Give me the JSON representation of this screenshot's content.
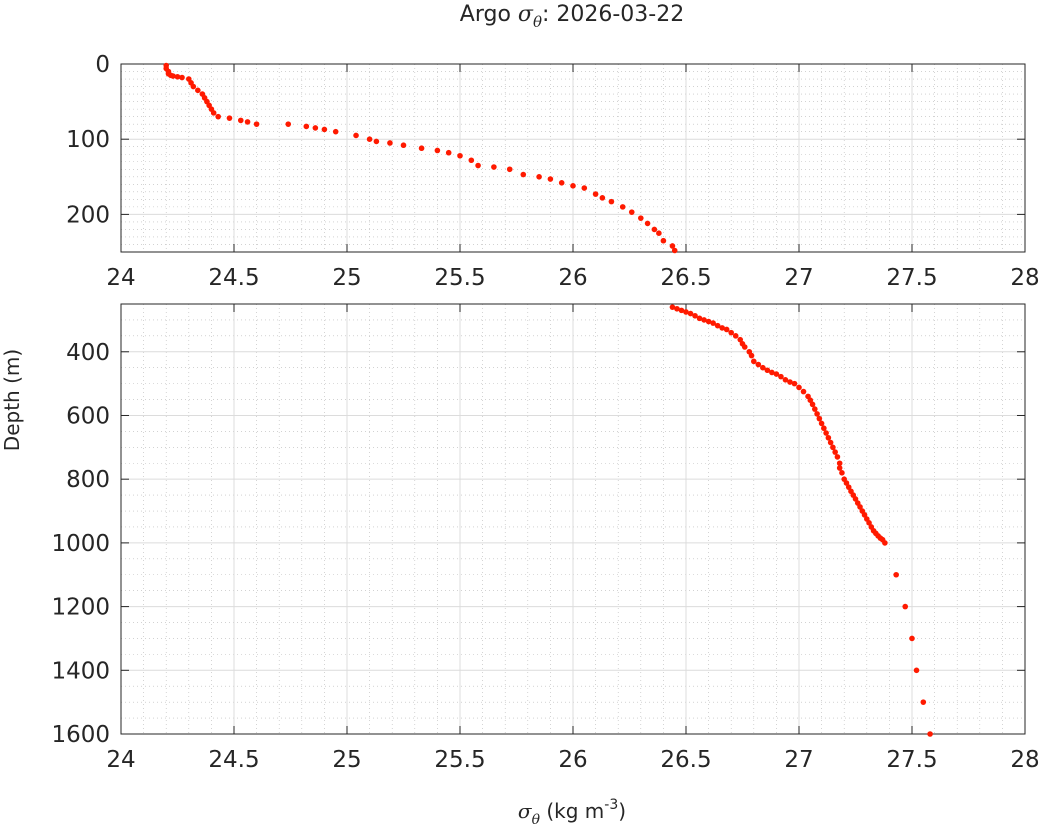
{
  "chart_data": [
    {
      "type": "scatter",
      "panel": "upper",
      "title_prefix": "Argo",
      "title_symbol": "σ",
      "title_symbol_subscript": "θ",
      "title_suffix": ": 2026-03-22",
      "xlim": [
        24,
        28
      ],
      "ylim": [
        0,
        250
      ],
      "y_reversed": true,
      "x_ticks": [
        "24",
        "24.5",
        "25",
        "25.5",
        "26",
        "26.5",
        "27",
        "27.5",
        "28"
      ],
      "y_ticks": [
        "0",
        "100",
        "200"
      ],
      "grid": true,
      "minor_grid": true,
      "marker_color": "#ff1a00",
      "series": [
        {
          "x": [
            24.2,
            24.2,
            24.21,
            24.21,
            24.22,
            24.23,
            24.25,
            24.27,
            24.3,
            24.31,
            24.32,
            24.34,
            24.36,
            24.37,
            24.38,
            24.39,
            24.4,
            24.41,
            24.43,
            24.48,
            24.53,
            24.56,
            24.6,
            24.74,
            24.82,
            24.86,
            24.9,
            24.95,
            25.04,
            25.1,
            25.13,
            25.19,
            25.25,
            25.33,
            25.4,
            25.45,
            25.5,
            25.55,
            25.58,
            25.65,
            25.72,
            25.78,
            25.85,
            25.9,
            25.95,
            26.0,
            26.05,
            26.1,
            26.13,
            26.17,
            26.22,
            26.26,
            26.3,
            26.33,
            26.36,
            26.38,
            26.4,
            26.44,
            26.45
          ],
          "y": [
            2,
            6,
            10,
            13,
            15,
            16,
            17,
            18,
            20,
            25,
            30,
            35,
            40,
            45,
            50,
            55,
            60,
            65,
            70,
            72,
            75,
            77,
            80,
            80,
            83,
            85,
            87,
            90,
            95,
            100,
            103,
            105,
            108,
            112,
            115,
            118,
            122,
            128,
            135,
            137,
            140,
            147,
            150,
            153,
            158,
            162,
            165,
            173,
            178,
            183,
            190,
            197,
            205,
            212,
            220,
            225,
            235,
            242,
            248
          ]
        }
      ]
    },
    {
      "type": "scatter",
      "panel": "lower",
      "xlim": [
        24,
        28
      ],
      "ylim": [
        250,
        1600
      ],
      "y_reversed": true,
      "x_ticks": [
        "24",
        "24.5",
        "25",
        "25.5",
        "26",
        "26.5",
        "27",
        "27.5",
        "28"
      ],
      "y_ticks": [
        "400",
        "600",
        "800",
        "1000",
        "1200",
        "1400",
        "1600"
      ],
      "grid": true,
      "minor_grid": true,
      "marker_color": "#ff1a00",
      "ylabel": "Depth (m)",
      "xlabel_symbol": "σ",
      "xlabel_subscript": "θ",
      "xlabel_units_prefix": " (kg m",
      "xlabel_units_exponent": "-3",
      "xlabel_units_suffix": ")",
      "series": [
        {
          "x": [
            26.44,
            26.46,
            26.48,
            26.5,
            26.52,
            26.54,
            26.56,
            26.58,
            26.6,
            26.62,
            26.64,
            26.66,
            26.68,
            26.7,
            26.72,
            26.74,
            26.75,
            26.76,
            26.78,
            26.79,
            26.8,
            26.82,
            26.84,
            26.86,
            26.88,
            26.9,
            26.92,
            26.94,
            26.96,
            26.98,
            27.0,
            27.02,
            27.04,
            27.05,
            27.06,
            27.07,
            27.08,
            27.09,
            27.1,
            27.11,
            27.12,
            27.13,
            27.14,
            27.15,
            27.16,
            27.17,
            27.18,
            27.18,
            27.19,
            27.2,
            27.21,
            27.22,
            27.23,
            27.24,
            27.25,
            27.26,
            27.27,
            27.28,
            27.29,
            27.3,
            27.31,
            27.32,
            27.33,
            27.34,
            27.35,
            27.36,
            27.37,
            27.38,
            27.43,
            27.47,
            27.5,
            27.52,
            27.55,
            27.58
          ],
          "y": [
            260,
            265,
            270,
            275,
            280,
            287,
            295,
            300,
            305,
            310,
            318,
            325,
            330,
            340,
            350,
            362,
            375,
            385,
            400,
            412,
            430,
            440,
            450,
            458,
            465,
            470,
            478,
            488,
            495,
            500,
            512,
            525,
            540,
            552,
            565,
            580,
            595,
            610,
            625,
            640,
            655,
            670,
            685,
            700,
            715,
            730,
            750,
            765,
            780,
            800,
            812,
            825,
            838,
            850,
            862,
            875,
            887,
            900,
            912,
            925,
            937,
            950,
            962,
            970,
            978,
            985,
            990,
            1000,
            1100,
            1200,
            1300,
            1400,
            1500,
            1600
          ]
        }
      ]
    }
  ]
}
